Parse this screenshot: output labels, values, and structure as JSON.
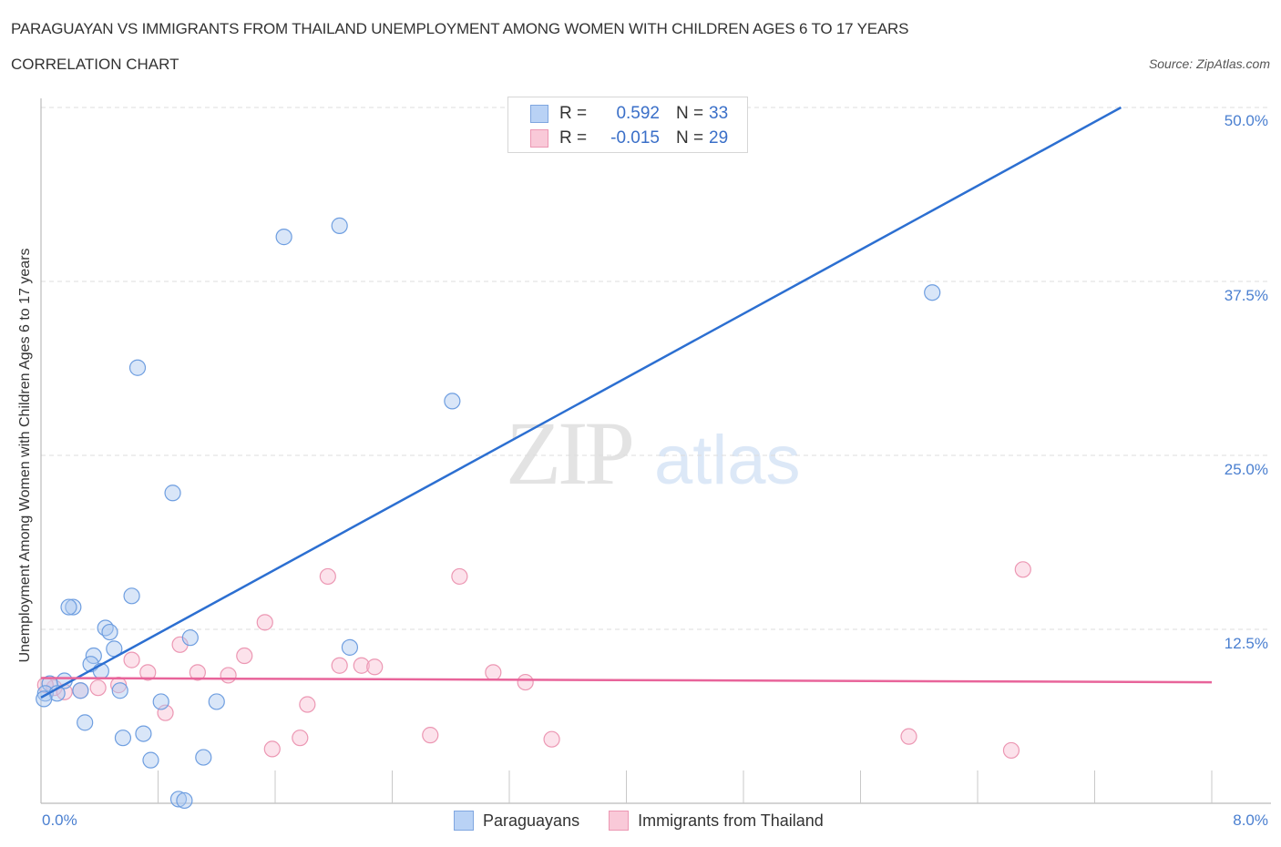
{
  "header": {
    "title": "PARAGUAYAN VS IMMIGRANTS FROM THAILAND UNEMPLOYMENT AMONG WOMEN WITH CHILDREN AGES 6 TO 17 YEARS",
    "subtitle": "CORRELATION CHART",
    "source": "Source: ZipAtlas.com"
  },
  "watermark": {
    "zip": "ZIP",
    "atlas": "atlas"
  },
  "legend": {
    "rows": [
      {
        "r_label": "R =",
        "r_value": "0.592",
        "n_label": "N =",
        "n_value": "33",
        "color": "#b9d2f5",
        "border": "#7fa6e0"
      },
      {
        "r_label": "R =",
        "r_value": "-0.015",
        "n_label": "N =",
        "n_value": "29",
        "color": "#f9c9d8",
        "border": "#ec97b3"
      }
    ]
  },
  "axes": {
    "ylabel": "Unemployment Among Women with Children Ages 6 to 17 years",
    "yticks": [
      "50.0%",
      "37.5%",
      "25.0%",
      "12.5%"
    ],
    "xticks": [
      "0.0%",
      "8.0%"
    ]
  },
  "bottom_legend": {
    "items": [
      {
        "label": "Paraguayans",
        "color": "#b9d2f5",
        "border": "#7fa6e0"
      },
      {
        "label": "Immigrants from Thailand",
        "color": "#f9c9d8",
        "border": "#ec97b3"
      }
    ]
  },
  "colors": {
    "blue_line": "#2c6fd1",
    "pink_line": "#e8649a",
    "blue_fill": "rgba(170,200,240,0.45)",
    "blue_stroke": "#6e9ee0",
    "pink_fill": "rgba(248,190,210,0.45)",
    "pink_stroke": "#ec97b3"
  },
  "chart_data": {
    "type": "scatter",
    "title": "PARAGUAYAN VS IMMIGRANTS FROM THAILAND UNEMPLOYMENT AMONG WOMEN WITH CHILDREN AGES 6 TO 17 YEARS",
    "subtitle": "CORRELATION CHART",
    "xlabel": "",
    "ylabel": "Unemployment Among Women with Children Ages 6 to 17 years",
    "xlim": [
      0,
      8
    ],
    "ylim": [
      0,
      50
    ],
    "x_unit": "%",
    "y_unit": "%",
    "y_ticks": [
      12.5,
      25.0,
      37.5,
      50.0
    ],
    "x_tick_labels": [
      "0.0%",
      "8.0%"
    ],
    "grid": "horizontal dashed",
    "legend_position": "top-center and bottom",
    "series": [
      {
        "name": "Paraguayans",
        "R": 0.592,
        "N": 33,
        "trendline": {
          "x": [
            0.0,
            7.38
          ],
          "y": [
            7.6,
            50.0
          ]
        },
        "points": [
          [
            1.66,
            40.7
          ],
          [
            2.04,
            41.5
          ],
          [
            0.66,
            31.3
          ],
          [
            0.9,
            22.3
          ],
          [
            2.81,
            28.9
          ],
          [
            6.09,
            36.7
          ],
          [
            0.22,
            14.1
          ],
          [
            0.19,
            14.1
          ],
          [
            0.62,
            14.9
          ],
          [
            0.44,
            12.6
          ],
          [
            0.47,
            12.3
          ],
          [
            1.02,
            11.9
          ],
          [
            0.5,
            11.1
          ],
          [
            0.36,
            10.6
          ],
          [
            0.34,
            10.0
          ],
          [
            0.41,
            9.5
          ],
          [
            2.11,
            11.2
          ],
          [
            0.16,
            8.8
          ],
          [
            0.06,
            8.6
          ],
          [
            0.03,
            7.9
          ],
          [
            0.11,
            7.9
          ],
          [
            0.54,
            8.1
          ],
          [
            0.82,
            7.3
          ],
          [
            1.2,
            7.3
          ],
          [
            0.3,
            5.8
          ],
          [
            0.56,
            4.7
          ],
          [
            0.7,
            5.0
          ],
          [
            0.75,
            3.1
          ],
          [
            1.11,
            3.3
          ],
          [
            0.94,
            0.3
          ],
          [
            0.98,
            0.2
          ],
          [
            0.02,
            7.5
          ],
          [
            0.27,
            8.1
          ]
        ]
      },
      {
        "name": "Immigrants from Thailand",
        "R": -0.015,
        "N": 29,
        "trendline": {
          "x": [
            0.0,
            8.0
          ],
          "y": [
            9.0,
            8.7
          ]
        },
        "points": [
          [
            1.96,
            16.3
          ],
          [
            2.86,
            16.3
          ],
          [
            6.71,
            16.8
          ],
          [
            1.53,
            13.0
          ],
          [
            0.95,
            11.4
          ],
          [
            1.39,
            10.6
          ],
          [
            0.62,
            10.3
          ],
          [
            0.73,
            9.4
          ],
          [
            1.07,
            9.4
          ],
          [
            1.28,
            9.2
          ],
          [
            2.04,
            9.9
          ],
          [
            2.19,
            9.9
          ],
          [
            2.28,
            9.8
          ],
          [
            3.09,
            9.4
          ],
          [
            3.31,
            8.7
          ],
          [
            0.09,
            8.3
          ],
          [
            0.16,
            8.0
          ],
          [
            0.27,
            8.1
          ],
          [
            0.39,
            8.3
          ],
          [
            0.85,
            6.5
          ],
          [
            1.82,
            7.1
          ],
          [
            1.58,
            3.9
          ],
          [
            1.77,
            4.7
          ],
          [
            2.66,
            4.9
          ],
          [
            3.49,
            4.6
          ],
          [
            5.93,
            4.8
          ],
          [
            6.63,
            3.8
          ],
          [
            0.53,
            8.5
          ],
          [
            0.03,
            8.5
          ]
        ]
      }
    ]
  }
}
